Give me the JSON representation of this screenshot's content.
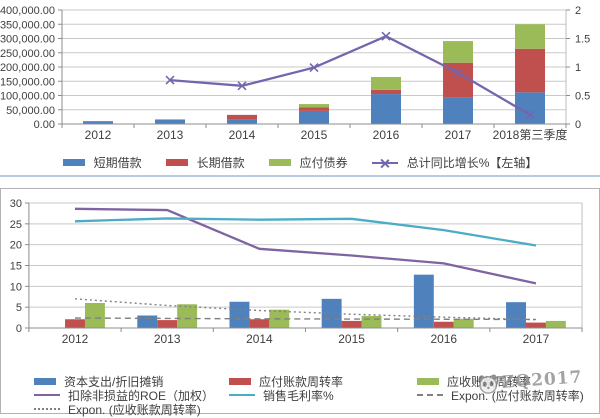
{
  "watermark": {
    "text": "ZQ2017",
    "icon": "panda-face-icon"
  },
  "chart_data": [
    {
      "type": "bar",
      "stacked": true,
      "title": "",
      "categories": [
        "2012",
        "2013",
        "2014",
        "2015",
        "2016",
        "2017",
        "2018第三季度"
      ],
      "series": [
        {
          "name": "短期借款",
          "type": "bar",
          "color": "#4F81BD",
          "values": [
            10000,
            16000,
            15000,
            46000,
            105000,
            92000,
            111000
          ]
        },
        {
          "name": "长期借款",
          "type": "bar",
          "color": "#C0504D",
          "values": [
            0,
            0,
            17000,
            12000,
            15000,
            123000,
            153000
          ]
        },
        {
          "name": "应付债券",
          "type": "bar",
          "color": "#9BBB59",
          "values": [
            0,
            0,
            0,
            12000,
            45000,
            76000,
            86000
          ]
        },
        {
          "name": "总计同比增长%【左轴】",
          "type": "line",
          "axis": "right",
          "color": "#7565AE",
          "marker": "x",
          "values": [
            null,
            0.77,
            0.67,
            0.99,
            1.54,
            0.9,
            0.16
          ]
        }
      ],
      "left_axis": {
        "min": 0,
        "max": 400000,
        "step": 50000,
        "tick_labels": [
          "0.00",
          "50,000.00",
          "100,000.00",
          "150,000.00",
          "200,000.00",
          "250,000.00",
          "300,000.00",
          "350,000.00",
          "400,000.00"
        ]
      },
      "right_axis": {
        "min": 0,
        "max": 2,
        "step": 0.5,
        "tick_labels": [
          "0",
          "0.5",
          "1",
          "1.5",
          "2"
        ]
      },
      "grid": true,
      "legend_position": "bottom"
    },
    {
      "type": "bar",
      "stacked": false,
      "title": "",
      "categories": [
        "2012",
        "2013",
        "2014",
        "2015",
        "2016",
        "2017"
      ],
      "series": [
        {
          "name": "资本支出/折旧摊销",
          "type": "bar",
          "color": "#4F81BD",
          "values": [
            null,
            3.0,
            6.3,
            7.0,
            12.8,
            6.2
          ]
        },
        {
          "name": "应付账款周转率",
          "type": "bar",
          "color": "#C0504D",
          "values": [
            2.1,
            1.9,
            2.1,
            1.7,
            1.5,
            1.3
          ]
        },
        {
          "name": "应收账款周转率",
          "type": "bar",
          "color": "#9BBB59",
          "values": [
            6.0,
            5.7,
            4.4,
            2.9,
            2.2,
            1.7
          ]
        },
        {
          "name": "扣除非损益的ROE（加权）",
          "type": "line",
          "color": "#8064A2",
          "values": [
            28.6,
            28.3,
            19.0,
            17.4,
            15.5,
            10.7
          ]
        },
        {
          "name": "销售毛利率%",
          "type": "line",
          "color": "#4BACC6",
          "values": [
            25.6,
            26.3,
            26.0,
            26.2,
            23.5,
            19.8
          ]
        },
        {
          "name": "Expon. (应付账款周转率)",
          "type": "line",
          "style": "dashed",
          "color": "#808080",
          "values": [
            2.4,
            2.3,
            2.2,
            2.15,
            2.1,
            2.05
          ]
        },
        {
          "name": "Expon. (应收账款周转率)",
          "type": "line",
          "style": "dotted",
          "color": "#808080",
          "values": [
            7.0,
            5.4,
            4.2,
            3.3,
            2.6,
            2.0
          ]
        }
      ],
      "y_axis": {
        "min": 0,
        "max": 30,
        "step": 5,
        "tick_labels": [
          "0",
          "5",
          "10",
          "15",
          "20",
          "25",
          "30"
        ]
      },
      "grid": true,
      "legend_position": "bottom"
    }
  ]
}
